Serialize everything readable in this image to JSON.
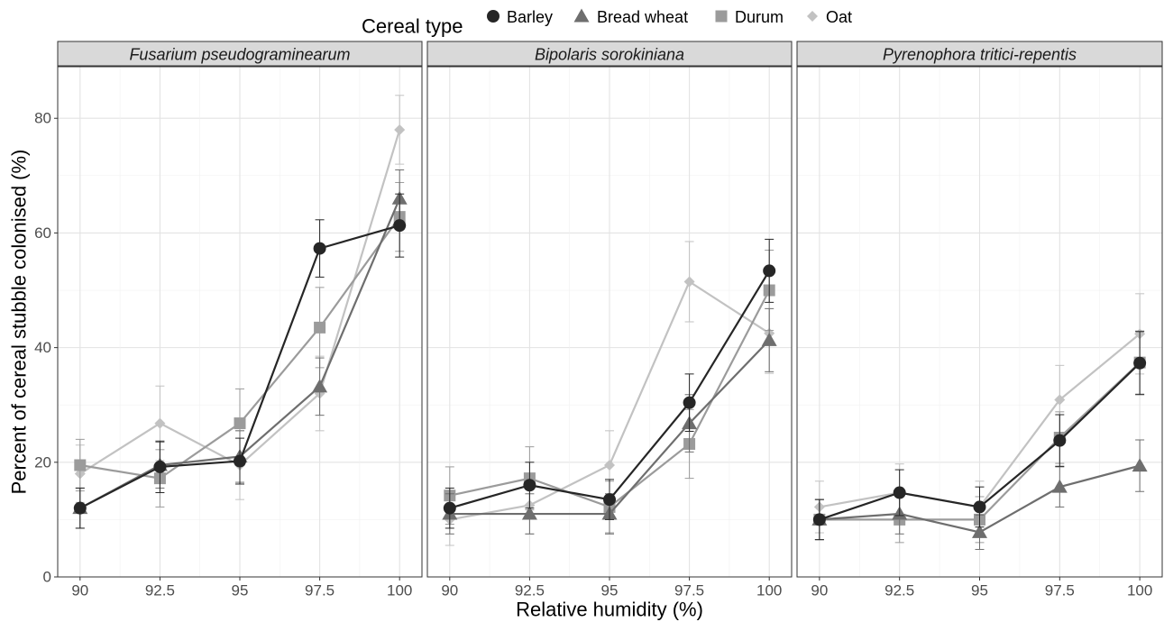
{
  "chart_data": {
    "type": "line",
    "xlabel": "Relative humidity (%)",
    "ylabel": "Percent of cereal stubble colonised (%)",
    "x": [
      90,
      92.5,
      95,
      97.5,
      100
    ],
    "x_tick_labels": [
      "90",
      "92.5",
      "95",
      "97.5",
      "100"
    ],
    "xlim": [
      89.3,
      100.7
    ],
    "ylim": [
      0,
      89
    ],
    "y_ticks": [
      0,
      20,
      40,
      60,
      80
    ],
    "grid": true,
    "legend": {
      "title": "Cereal type",
      "position": "top",
      "entries": [
        {
          "name": "Barley",
          "shape": "circle",
          "color": "#262626"
        },
        {
          "name": "Bread wheat",
          "shape": "triangle",
          "color": "#6e6e6e"
        },
        {
          "name": "Durum",
          "shape": "square",
          "color": "#9b9b9b"
        },
        {
          "name": "Oat",
          "shape": "diamond",
          "color": "#c2c2c2"
        }
      ]
    },
    "panels": [
      {
        "title": "Fusarium pseudograminearum",
        "series": [
          {
            "name": "Barley",
            "values": [
              12,
              19.2,
              20.2,
              57.3,
              61.3
            ],
            "err": [
              3.5,
              4.5,
              4,
              5,
              5.5
            ]
          },
          {
            "name": "Bread wheat",
            "values": [
              12,
              19.5,
              21,
              33.2,
              66
            ],
            "err": [
              3.5,
              4,
              4.5,
              5,
              5
            ]
          },
          {
            "name": "Durum",
            "values": [
              19.5,
              17.2,
              26.8,
              43.5,
              62.8
            ],
            "err": [
              4.5,
              5,
              6,
              7,
              6
            ]
          },
          {
            "name": "Oat",
            "values": [
              18,
              26.8,
              19.5,
              32,
              78
            ],
            "err": [
              5,
              6.5,
              6,
              6.5,
              6
            ]
          }
        ]
      },
      {
        "title": "Bipolaris sorokiniana",
        "series": [
          {
            "name": "Barley",
            "values": [
              12,
              16,
              13.5,
              30.4,
              53.4
            ],
            "err": [
              3.5,
              4,
              3.5,
              5,
              5.5
            ]
          },
          {
            "name": "Bread wheat",
            "values": [
              11,
              11,
              11,
              26.8,
              41.3
            ],
            "err": [
              3.5,
              3.5,
              3.5,
              5,
              5.5
            ]
          },
          {
            "name": "Durum",
            "values": [
              14.2,
              17.2,
              12.2,
              23.2,
              50
            ],
            "err": [
              5,
              5.5,
              4.5,
              6,
              7
            ]
          },
          {
            "name": "Oat",
            "values": [
              10,
              12.5,
              19.5,
              51.5,
              42.5
            ],
            "err": [
              4.5,
              5,
              6,
              7,
              7
            ]
          }
        ]
      },
      {
        "title": "Pyrenophora tritici-repentis",
        "series": [
          {
            "name": "Barley",
            "values": [
              10,
              14.7,
              12.2,
              23.8,
              37.3
            ],
            "err": [
              3.5,
              4,
              3.5,
              4.5,
              5.5
            ]
          },
          {
            "name": "Bread wheat",
            "values": [
              10,
              11,
              7.8,
              15.7,
              19.4
            ],
            "err": [
              3.5,
              3.5,
              3,
              3.5,
              4.5
            ]
          },
          {
            "name": "Durum",
            "values": [
              10,
              10,
              10,
              24.3,
              37.4
            ],
            "err": [
              3.5,
              4,
              4,
              4.5,
              5.5
            ]
          },
          {
            "name": "Oat",
            "values": [
              12.2,
              14.7,
              12.2,
              30.9,
              42.4
            ],
            "err": [
              4.5,
              5,
              4.5,
              6,
              7
            ]
          }
        ]
      }
    ]
  }
}
